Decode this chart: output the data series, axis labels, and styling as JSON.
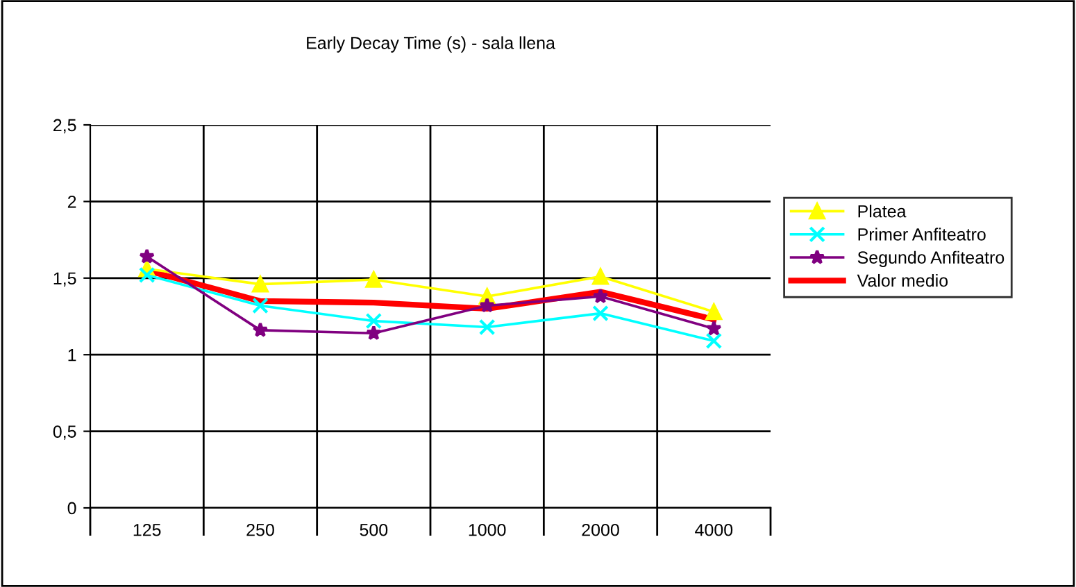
{
  "chart_data": {
    "type": "line",
    "title": "Early Decay Time (s) - sala llena",
    "categories": [
      "125",
      "250",
      "500",
      "1000",
      "2000",
      "4000"
    ],
    "series": [
      {
        "name": "Platea",
        "color": "#ffff00",
        "marker": "triangle",
        "values": [
          1.56,
          1.46,
          1.49,
          1.38,
          1.51,
          1.28
        ]
      },
      {
        "name": "Primer Anfiteatro",
        "color": "#00ffff",
        "marker": "cross",
        "values": [
          1.52,
          1.32,
          1.22,
          1.18,
          1.27,
          1.09
        ]
      },
      {
        "name": "Segundo Anfiteatro",
        "color": "#800080",
        "marker": "star",
        "values": [
          1.64,
          1.16,
          1.14,
          1.32,
          1.38,
          1.17
        ]
      },
      {
        "name": "Valor medio",
        "color": "#ff0000",
        "marker": "none",
        "values": [
          1.55,
          1.35,
          1.34,
          1.3,
          1.41,
          1.23
        ]
      }
    ],
    "ylim": [
      0,
      2.5
    ],
    "yticks": [
      0,
      {
        "value": 0.5,
        "label": "0,5"
      },
      1,
      {
        "value": 1.5,
        "label": "1,5"
      },
      2,
      {
        "value": 2.5,
        "label": "2,5"
      }
    ],
    "grid": true,
    "legend": "right"
  }
}
